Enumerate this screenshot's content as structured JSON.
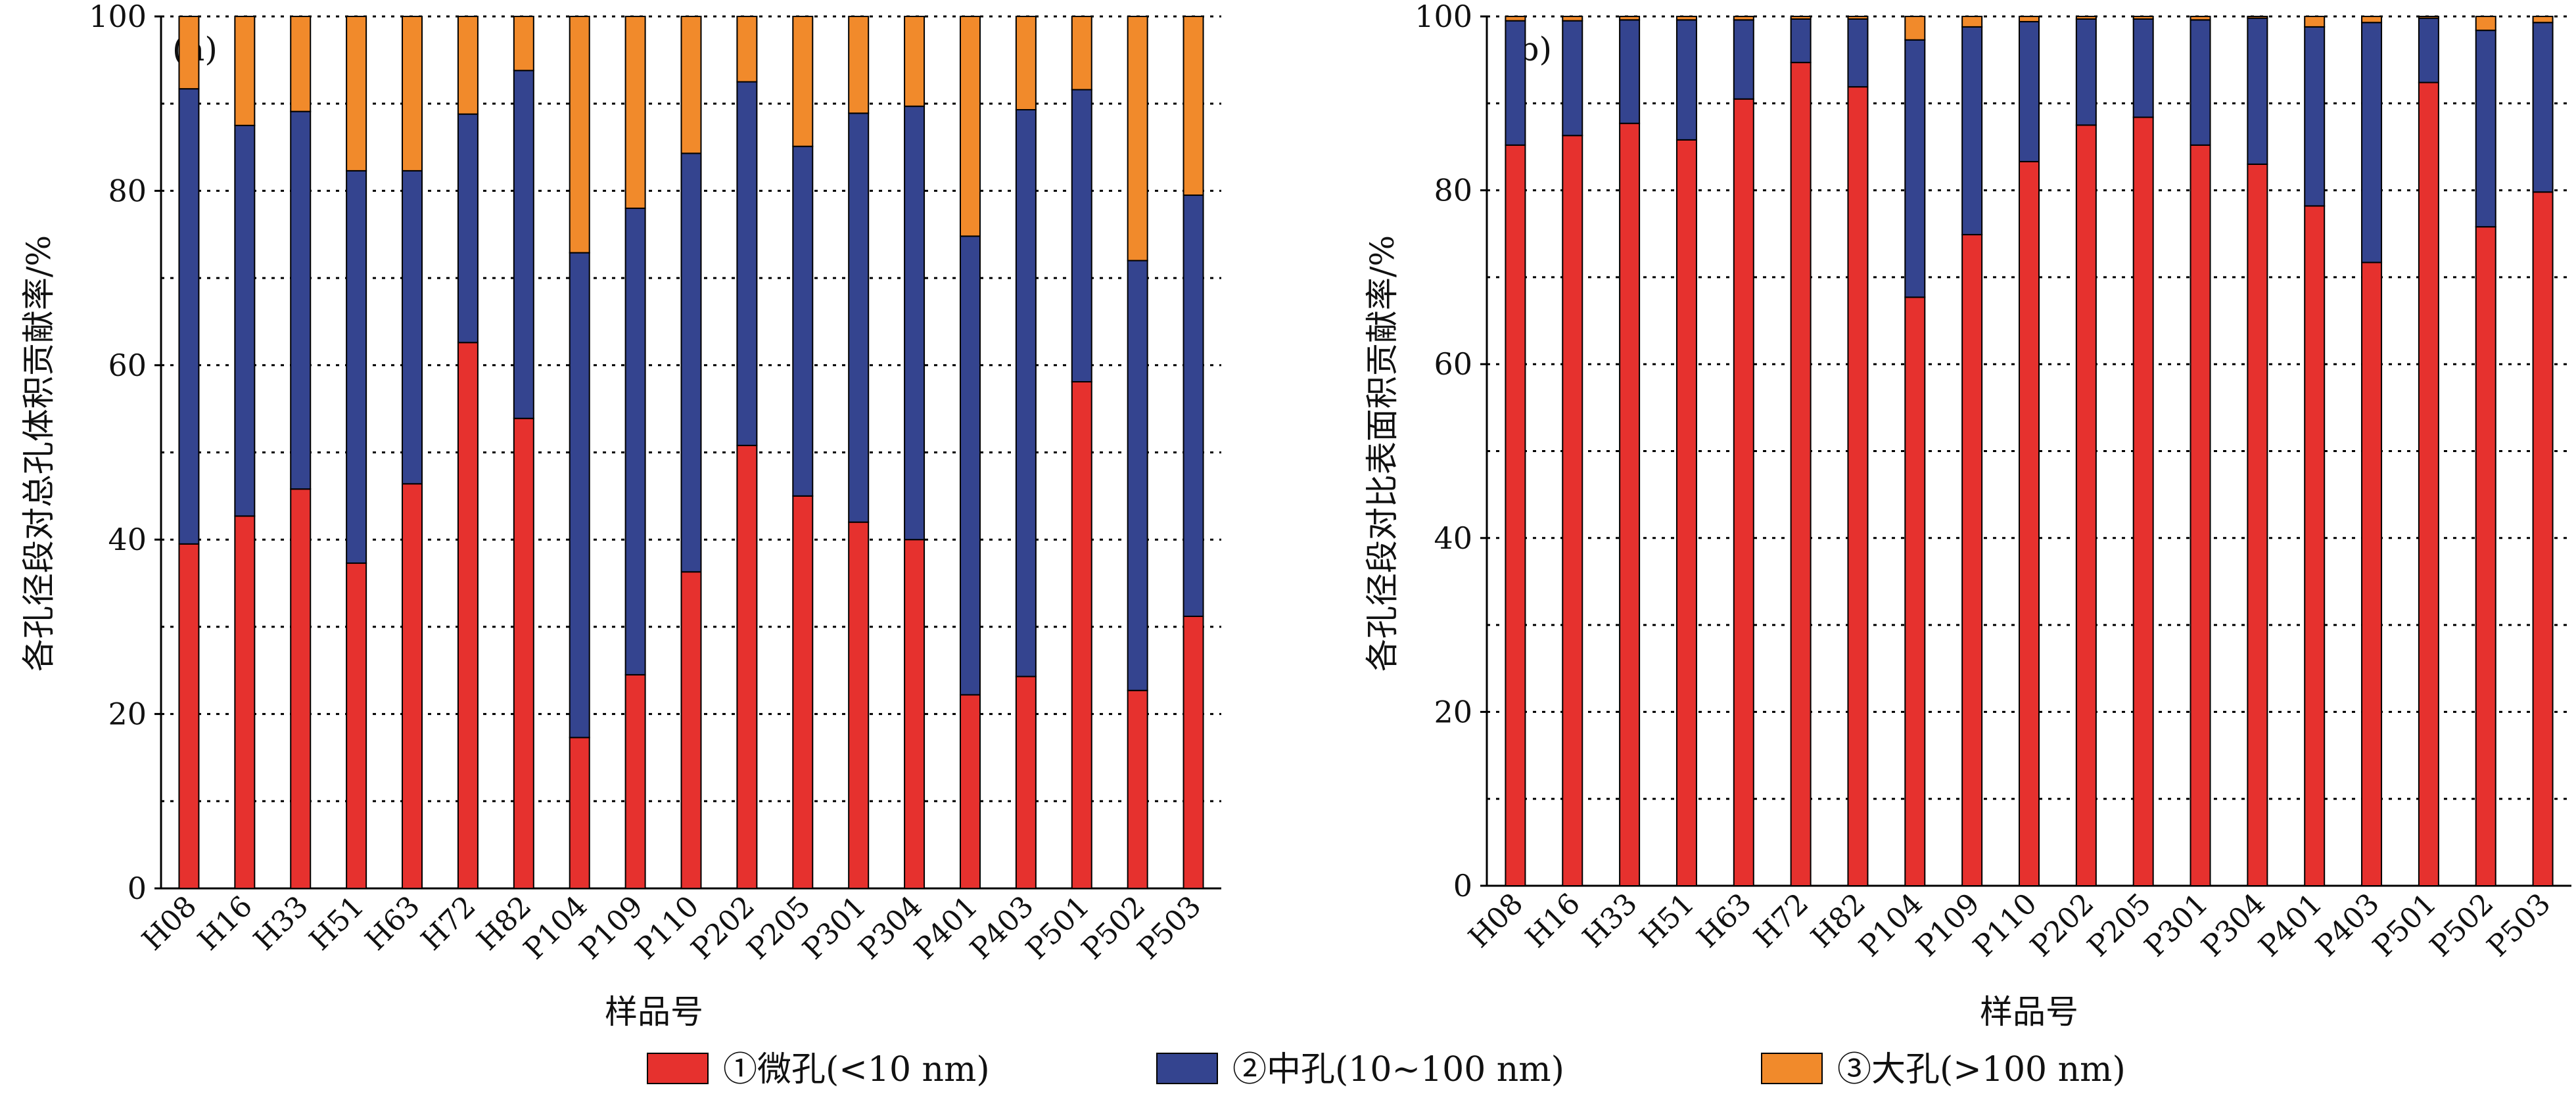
{
  "legend": [
    {
      "label": "①微孔(<10 nm)",
      "color": "#e6312e"
    },
    {
      "label": "②中孔(10~100 nm)",
      "color": "#34448f"
    },
    {
      "label": "③大孔(>100 nm)",
      "color": "#f18a2b"
    }
  ],
  "chart_data": [
    {
      "type": "bar",
      "stacked": true,
      "panel_label": "(a)",
      "xlabel": "样品号",
      "ylabel": "各孔径段对总孔体积贡献率/%",
      "ylim": [
        0,
        100
      ],
      "yticks": [
        0,
        20,
        40,
        60,
        80,
        100
      ],
      "grid": "horizontal dotted every 10",
      "categories": [
        "H08",
        "H16",
        "H33",
        "H51",
        "H63",
        "H72",
        "H82",
        "P104",
        "P109",
        "P110",
        "P202",
        "P205",
        "P301",
        "P304",
        "P401",
        "P403",
        "P501",
        "P502",
        "P503"
      ],
      "series": [
        {
          "name": "①微孔(<10 nm)",
          "color": "#e6312e",
          "values": [
            39.5,
            42.7,
            45.8,
            37.3,
            46.4,
            62.6,
            53.9,
            17.3,
            24.5,
            36.3,
            50.8,
            45.0,
            42.0,
            40.0,
            22.2,
            24.3,
            58.1,
            22.7,
            31.2
          ]
        },
        {
          "name": "②中孔(10~100 nm)",
          "color": "#34448f",
          "values": [
            52.2,
            44.8,
            43.3,
            45.0,
            35.9,
            26.2,
            39.9,
            55.6,
            53.5,
            48.0,
            41.7,
            40.1,
            46.9,
            49.7,
            52.6,
            65.0,
            33.5,
            49.3,
            48.3
          ]
        },
        {
          "name": "③大孔(>100 nm)",
          "color": "#f18a2b",
          "values": [
            8.3,
            12.5,
            10.9,
            17.7,
            17.7,
            11.2,
            6.2,
            27.1,
            22.0,
            15.7,
            7.5,
            14.9,
            11.1,
            10.3,
            25.2,
            10.7,
            8.4,
            28.0,
            20.5
          ]
        }
      ]
    },
    {
      "type": "bar",
      "stacked": true,
      "panel_label": "(b)",
      "xlabel": "样品号",
      "ylabel": "各孔径段对比表面积贡献率/%",
      "ylim": [
        0,
        100
      ],
      "yticks": [
        0,
        20,
        40,
        60,
        80,
        100
      ],
      "grid": "horizontal dotted every 10",
      "categories": [
        "H08",
        "H16",
        "H33",
        "H51",
        "H63",
        "H72",
        "H82",
        "P104",
        "P109",
        "P110",
        "P202",
        "P205",
        "P301",
        "P304",
        "P401",
        "P403",
        "P501",
        "P502",
        "P503"
      ],
      "series": [
        {
          "name": "①微孔(<10 nm)",
          "color": "#e6312e",
          "values": [
            85.2,
            86.3,
            87.7,
            85.8,
            90.5,
            94.7,
            91.9,
            67.7,
            74.9,
            83.3,
            87.5,
            88.4,
            85.2,
            83.0,
            78.2,
            71.7,
            92.4,
            75.8,
            79.8
          ]
        },
        {
          "name": "②中孔(10~100 nm)",
          "color": "#34448f",
          "values": [
            14.3,
            13.2,
            11.9,
            13.8,
            9.1,
            5.0,
            7.8,
            29.6,
            23.9,
            16.1,
            12.2,
            11.3,
            14.4,
            16.8,
            20.6,
            27.6,
            7.4,
            22.6,
            19.5
          ]
        },
        {
          "name": "③大孔(>100 nm)",
          "color": "#f18a2b",
          "values": [
            0.5,
            0.5,
            0.4,
            0.4,
            0.4,
            0.3,
            0.3,
            2.7,
            1.2,
            0.6,
            0.3,
            0.3,
            0.4,
            0.2,
            1.2,
            0.7,
            0.2,
            1.6,
            0.7
          ]
        }
      ]
    }
  ]
}
